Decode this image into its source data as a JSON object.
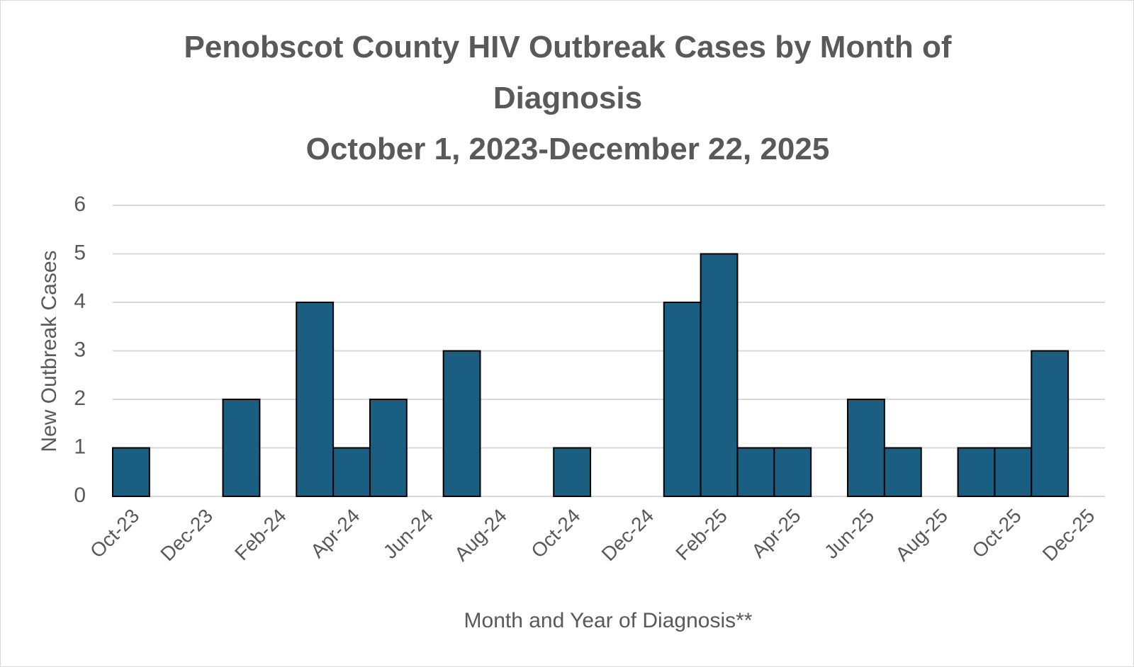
{
  "chart_data": {
    "type": "bar",
    "title": "Penobscot County HIV Outbreak Cases by Month of Diagnosis",
    "subtitle": "October 1, 2023-December 22, 2025",
    "x_label": "Month and Year of Diagnosis**",
    "y_label": "New Outbreak Cases",
    "categories": [
      "Oct-23",
      null,
      "Dec-23",
      null,
      "Feb-24",
      null,
      "Apr-24",
      null,
      "Jun-24",
      null,
      "Aug-24",
      null,
      "Oct-24",
      null,
      "Dec-24",
      null,
      "Feb-25",
      null,
      "Apr-25",
      null,
      "Jun-25",
      null,
      "Aug-25",
      null,
      "Oct-25",
      null,
      "Dec-25"
    ],
    "values": [
      1,
      0,
      0,
      2,
      0,
      4,
      1,
      2,
      0,
      3,
      0,
      0,
      1,
      0,
      0,
      4,
      5,
      1,
      1,
      0,
      2,
      1,
      0,
      1,
      1,
      3,
      0
    ],
    "color": "#1a5f82",
    "ylim": [
      0,
      6
    ],
    "yticks": [
      0,
      1,
      2,
      3,
      4,
      5,
      6
    ],
    "grid": true
  }
}
